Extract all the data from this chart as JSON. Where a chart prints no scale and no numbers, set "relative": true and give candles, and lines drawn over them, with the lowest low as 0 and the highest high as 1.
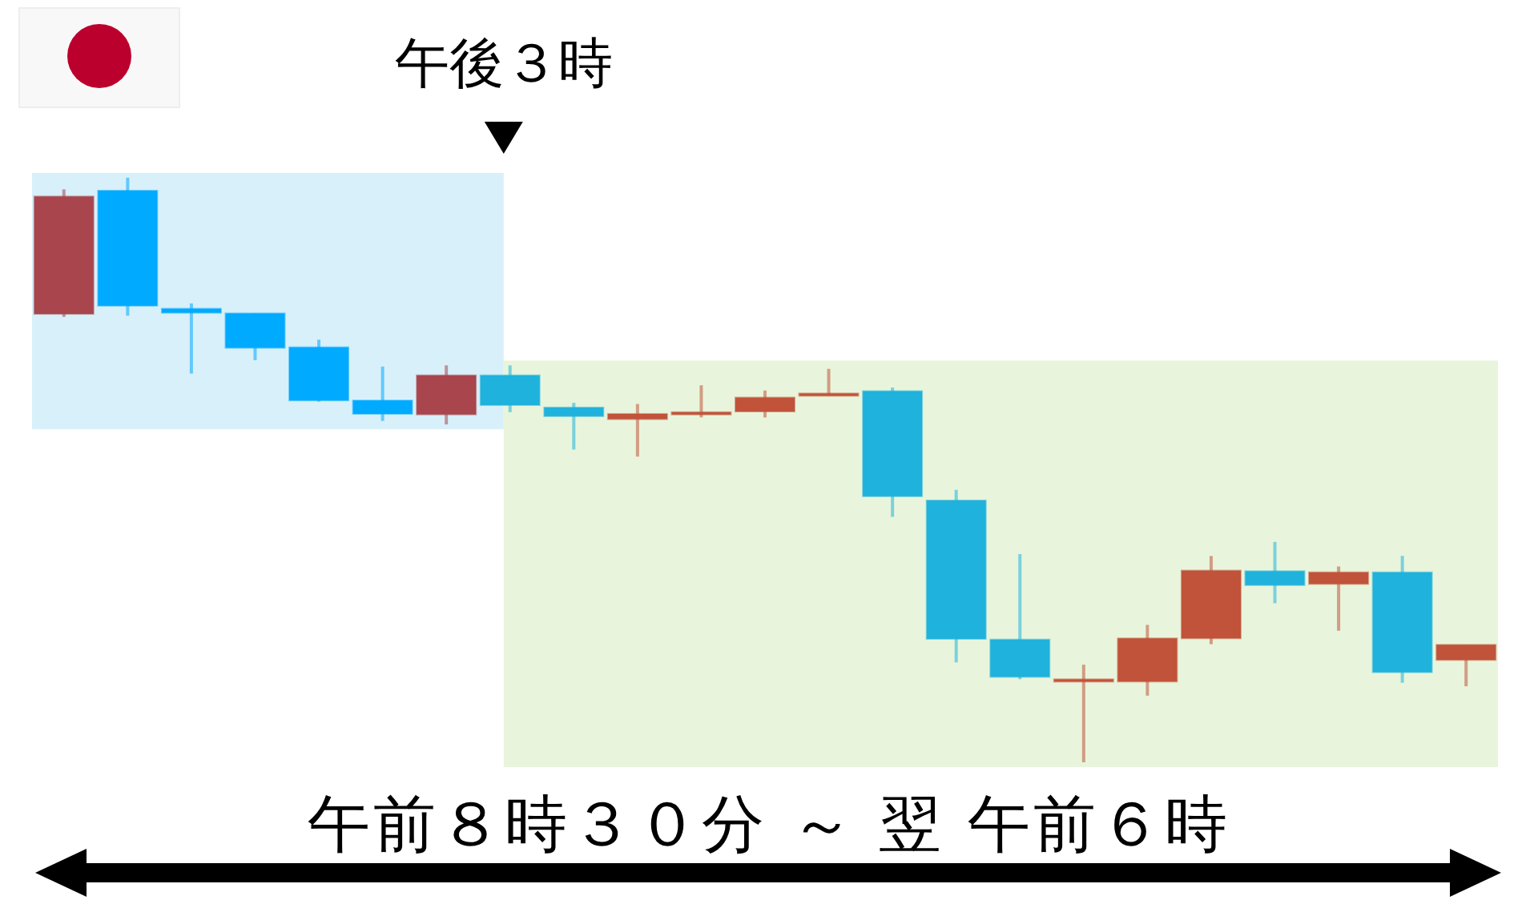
{
  "chart_data": {
    "type": "candlestick",
    "relative": true,
    "categories": [
      null,
      null,
      null,
      null,
      null,
      null,
      null,
      null,
      null,
      null,
      null,
      null,
      null,
      null,
      null,
      null,
      null,
      null,
      null,
      null,
      null,
      null,
      null
    ],
    "ohlc": [
      [
        0.767,
        0.98,
        0.762,
        0.968
      ],
      [
        0.978,
        1,
        0.764,
        0.781
      ],
      [
        0.776,
        0.785,
        0.665,
        0.769
      ],
      [
        0.768,
        0.768,
        0.688,
        0.709
      ],
      [
        0.71,
        0.723,
        0.617,
        0.619
      ],
      [
        0.619,
        0.677,
        0.584,
        0.596
      ],
      [
        0.595,
        0.679,
        0.578,
        0.662
      ],
      [
        0.662,
        0.679,
        0.599,
        0.611
      ],
      [
        0.607,
        0.615,
        0.535,
        0.592
      ],
      [
        0.587,
        0.613,
        0.523,
        0.596
      ],
      [
        0.595,
        0.645,
        0.59,
        0.599
      ],
      [
        0.6,
        0.636,
        0.59,
        0.624
      ],
      [
        0.627,
        0.673,
        0.627,
        0.631
      ],
      [
        0.635,
        0.641,
        0.42,
        0.455
      ],
      [
        0.448,
        0.466,
        0.171,
        0.211
      ],
      [
        0.21,
        0.356,
        0.142,
        0.146
      ],
      [
        0.142,
        0.167,
        0,
        0.142
      ],
      [
        0.138,
        0.235,
        0.114,
        0.212
      ],
      [
        0.212,
        0.353,
        0.202,
        0.328
      ],
      [
        0.327,
        0.377,
        0.272,
        0.303
      ],
      [
        0.305,
        0.335,
        0.225,
        0.325
      ],
      [
        0.325,
        0.353,
        0.136,
        0.154
      ],
      [
        0.175,
        0.201,
        0.13,
        0.201
      ]
    ],
    "colors": [
      "#a8454d",
      "#00aaff",
      "#00aaff",
      "#00aaff",
      "#00aaff",
      "#00aaff",
      "#a8454d",
      "#1fb2dc",
      "#1fb2dc",
      "#c0533a",
      "#c0533a",
      "#c0533a",
      "#c0533a",
      "#1fb2dc",
      "#1fb2dc",
      "#1fb2dc",
      "#c0533a",
      "#c0533a",
      "#c0533a",
      "#1fb2dc",
      "#c0533a",
      "#1fb2dc",
      "#c0533a"
    ],
    "annotations": [
      "午後３時",
      "午前８時３０分 ～ 翌 午前６時"
    ]
  }
}
